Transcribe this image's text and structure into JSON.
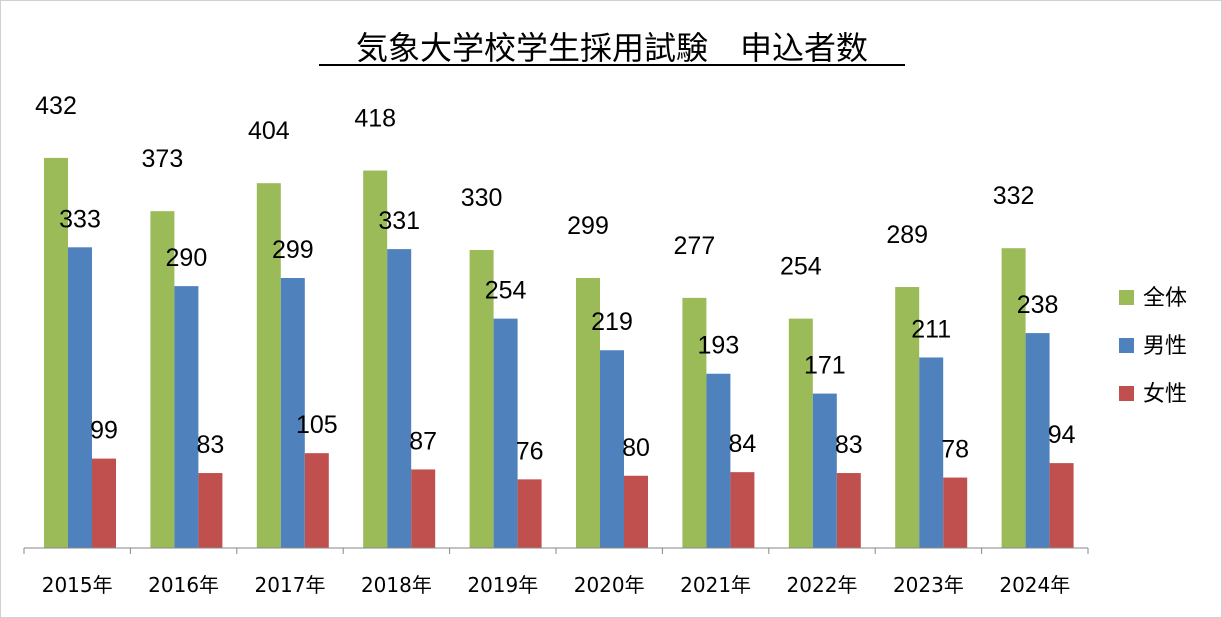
{
  "chart_data": {
    "type": "bar",
    "title": "気象大学校学生採用試験　申込者数",
    "xlabel": "",
    "ylabel": "",
    "ylim": [
      0,
      470
    ],
    "grid": false,
    "legend_position": "right",
    "categories": [
      "2015年",
      "2016年",
      "2017年",
      "2018年",
      "2019年",
      "2020年",
      "2021年",
      "2022年",
      "2023年",
      "2024年"
    ],
    "series": [
      {
        "name": "全体",
        "color": "#9BBB59",
        "values": [
          432,
          373,
          404,
          418,
          330,
          299,
          277,
          254,
          289,
          332
        ]
      },
      {
        "name": "男性",
        "color": "#4F81BD",
        "values": [
          333,
          290,
          299,
          331,
          254,
          219,
          193,
          171,
          211,
          238
        ]
      },
      {
        "name": "女性",
        "color": "#C0504D",
        "values": [
          99,
          83,
          105,
          87,
          76,
          80,
          84,
          83,
          78,
          94
        ]
      }
    ]
  }
}
